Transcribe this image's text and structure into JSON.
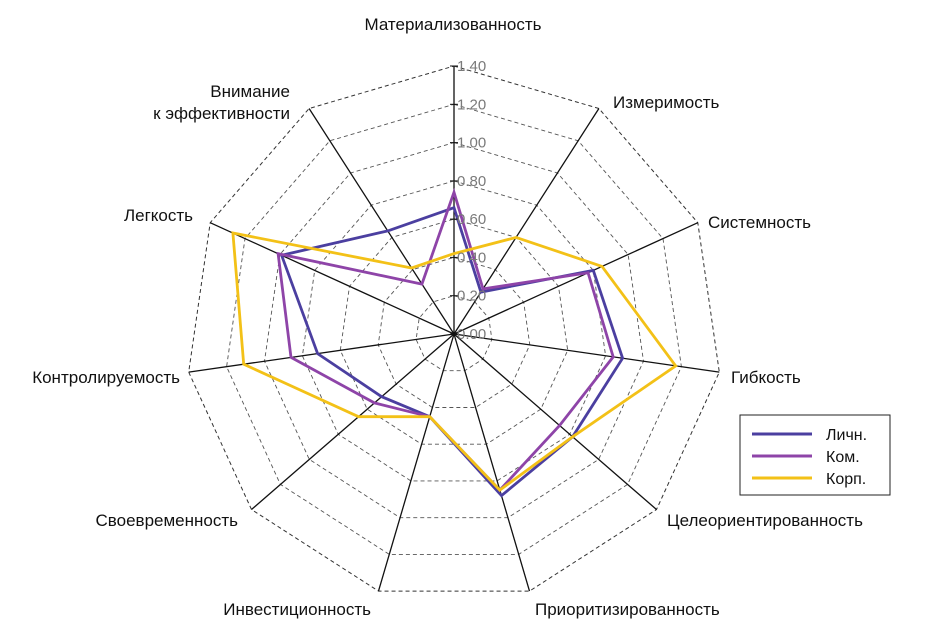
{
  "chart_data": {
    "type": "radar",
    "axes": [
      [
        "Материализованность"
      ],
      [
        "Измеримость"
      ],
      [
        "Системность"
      ],
      [
        "Гибкость"
      ],
      [
        "Целеориентированность"
      ],
      [
        "Приоритизированность"
      ],
      [
        "Инвестиционность"
      ],
      [
        "Своевременность"
      ],
      [
        "Контролируемость"
      ],
      [
        "Легкость"
      ],
      [
        "Внимание",
        "к эффективности"
      ]
    ],
    "ticks": [
      "0.00",
      "0.20",
      "0.40",
      "0.60",
      "0.80",
      "1.00",
      "1.20",
      "1.40"
    ],
    "rmax": 1.4,
    "grid": true,
    "legend_position": "right",
    "series": [
      {
        "name": "Личн.",
        "color": "#4b3fa0",
        "values": [
          0.66,
          0.26,
          0.8,
          0.89,
          0.82,
          0.88,
          0.45,
          0.5,
          0.72,
          0.99,
          0.64
        ]
      },
      {
        "name": "Ком.",
        "color": "#8e44a8",
        "values": [
          0.74,
          0.28,
          0.77,
          0.84,
          0.73,
          0.85,
          0.45,
          0.55,
          0.86,
          1.01,
          0.31
        ]
      },
      {
        "name": "Корп.",
        "color": "#f3c117",
        "values": [
          0.42,
          0.6,
          0.85,
          1.17,
          0.82,
          0.85,
          0.45,
          0.66,
          1.11,
          1.27,
          0.41
        ]
      }
    ]
  }
}
